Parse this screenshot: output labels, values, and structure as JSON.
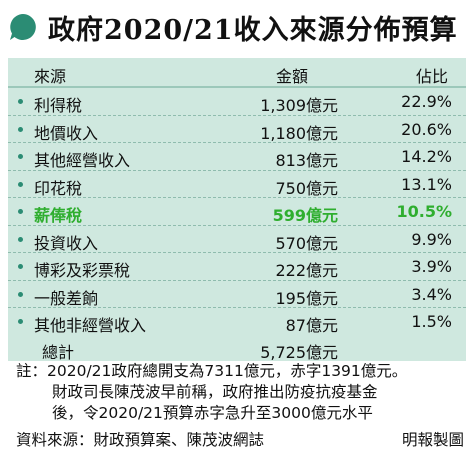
{
  "title": "政府2020/21收入來源分佈預算",
  "colors": {
    "accent": "#2b8c74",
    "table_bg": "#cfe8df",
    "highlight": "#2fae2f"
  },
  "headers": {
    "source": "來源",
    "amount": "金額",
    "share": "佔比"
  },
  "rows": [
    {
      "name": "利得稅",
      "amount": "1,309億元",
      "share": "22.9%"
    },
    {
      "name": "地價收入",
      "amount": "1,180億元",
      "share": "20.6%"
    },
    {
      "name": "其他經營收入",
      "amount": "813億元",
      "share": "14.2%"
    },
    {
      "name": "印花稅",
      "amount": "750億元",
      "share": "13.1%"
    },
    {
      "name": "薪俸稅",
      "amount": "599億元",
      "share": "10.5%",
      "highlight": true
    },
    {
      "name": "投資收入",
      "amount": "570億元",
      "share": "9.9%"
    },
    {
      "name": "博彩及彩票稅",
      "amount": "222億元",
      "share": "3.9%"
    },
    {
      "name": "一般差餉",
      "amount": "195億元",
      "share": "3.4%"
    },
    {
      "name": "其他非經營收入",
      "amount": "87億元",
      "share": "1.5%"
    }
  ],
  "total": {
    "label": "總計",
    "amount": "5,725億元"
  },
  "notes": [
    "註：2020/21政府總開支為7311億元，赤字1391億元。",
    "財政司長陳茂波早前稱，政府推出防疫抗疫基金",
    "後，令2020/21預算赤字急升至3000億元水平"
  ],
  "source": "資料來源：財政預算案、陳茂波網誌",
  "credit": "明報製圖"
}
